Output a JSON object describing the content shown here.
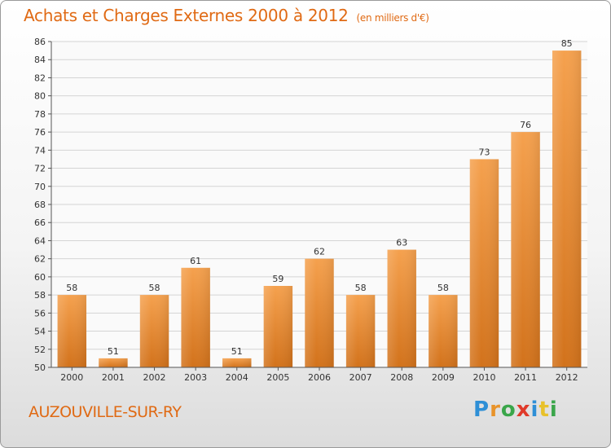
{
  "chart_data": {
    "type": "bar",
    "title": "Achats et Charges Externes 2000 à 2012",
    "subtitle": "(en milliers d'€)",
    "categories": [
      "2000",
      "2001",
      "2002",
      "2003",
      "2004",
      "2005",
      "2006",
      "2007",
      "2008",
      "2009",
      "2010",
      "2011",
      "2012"
    ],
    "values": [
      58,
      51,
      58,
      61,
      51,
      59,
      62,
      58,
      63,
      58,
      73,
      76,
      85
    ],
    "ylim": [
      50,
      86
    ],
    "yticks": [
      50,
      52,
      54,
      56,
      58,
      60,
      62,
      64,
      66,
      68,
      70,
      72,
      74,
      76,
      78,
      80,
      82,
      84,
      86
    ],
    "grid": true,
    "bar_color_top": "#f5a14e",
    "bar_color_bottom": "#d2721b",
    "title_color": "#e06a14"
  },
  "commune": "AUZOUVILLE-SUR-RY",
  "logo": {
    "text": "Proxiti",
    "letters": [
      {
        "ch": "P",
        "color": "#2e8fd6"
      },
      {
        "ch": "r",
        "color": "#e8932a"
      },
      {
        "ch": "o",
        "color": "#3aa64a"
      },
      {
        "ch": "x",
        "color": "#e03a2a"
      },
      {
        "ch": "i",
        "color": "#2e8fd6"
      },
      {
        "ch": "t",
        "color": "#e8c12a"
      },
      {
        "ch": "i",
        "color": "#3aa64a"
      }
    ]
  }
}
